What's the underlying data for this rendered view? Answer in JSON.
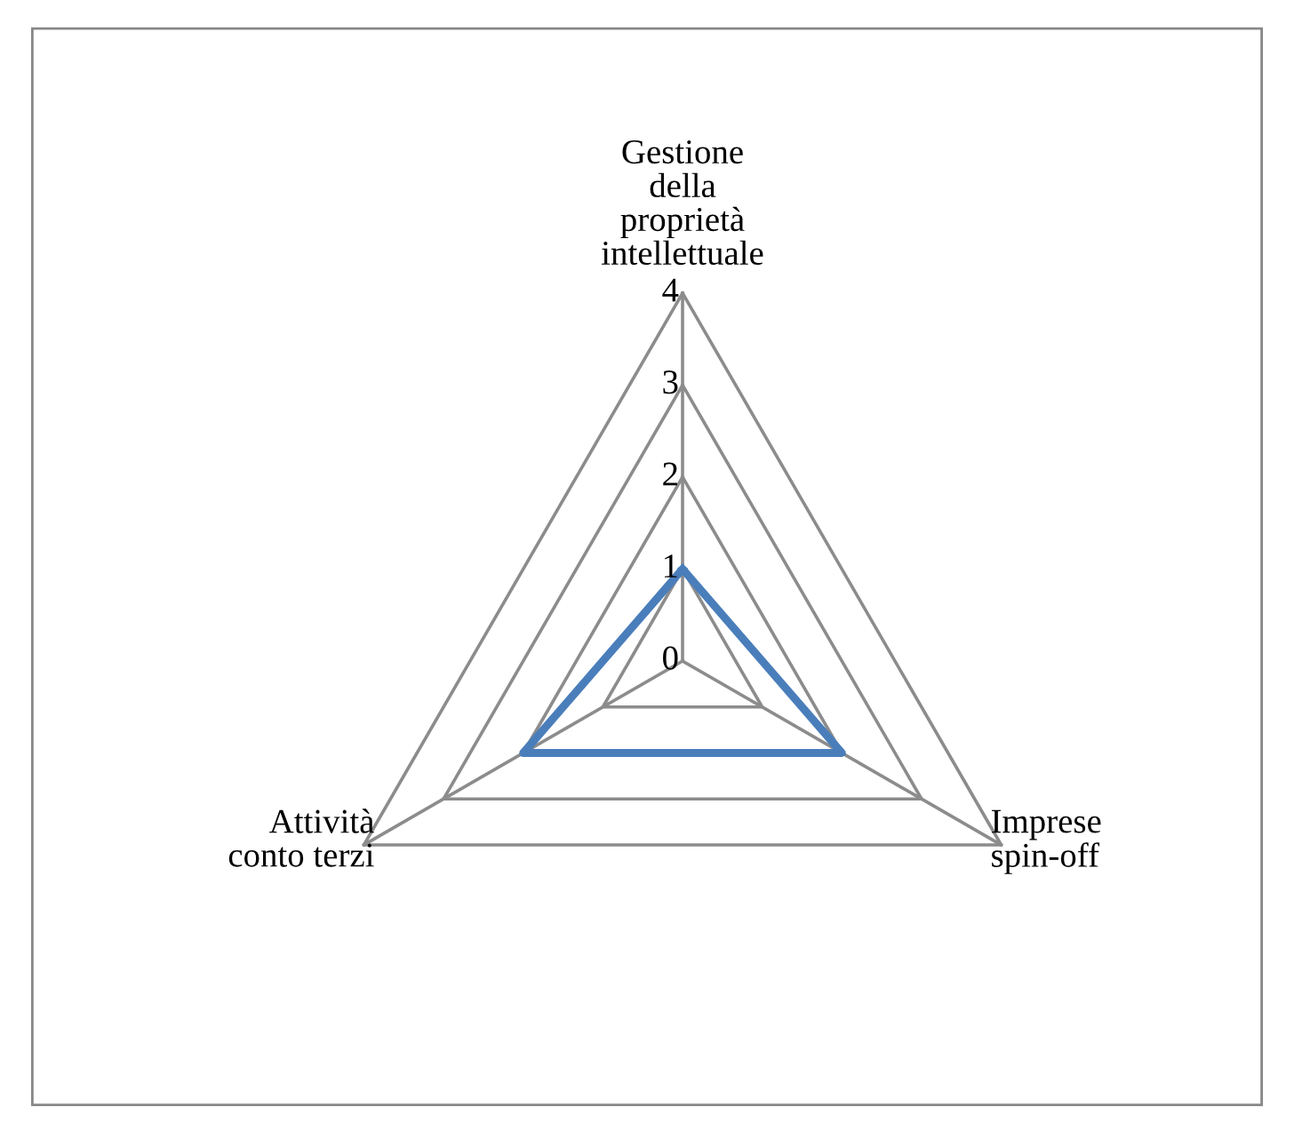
{
  "chart_data": {
    "type": "radar",
    "categories": [
      "Gestione\ndella\nproprietà\nintellettuale",
      "Imprese\nspin-off",
      "Attività\nconto terzi"
    ],
    "series": [
      {
        "color": "#4a7ebb",
        "values": [
          1,
          2,
          2
        ]
      }
    ],
    "ylim": [
      0,
      4
    ],
    "yticks": [
      0,
      1,
      2,
      3,
      4
    ],
    "grid": true
  }
}
